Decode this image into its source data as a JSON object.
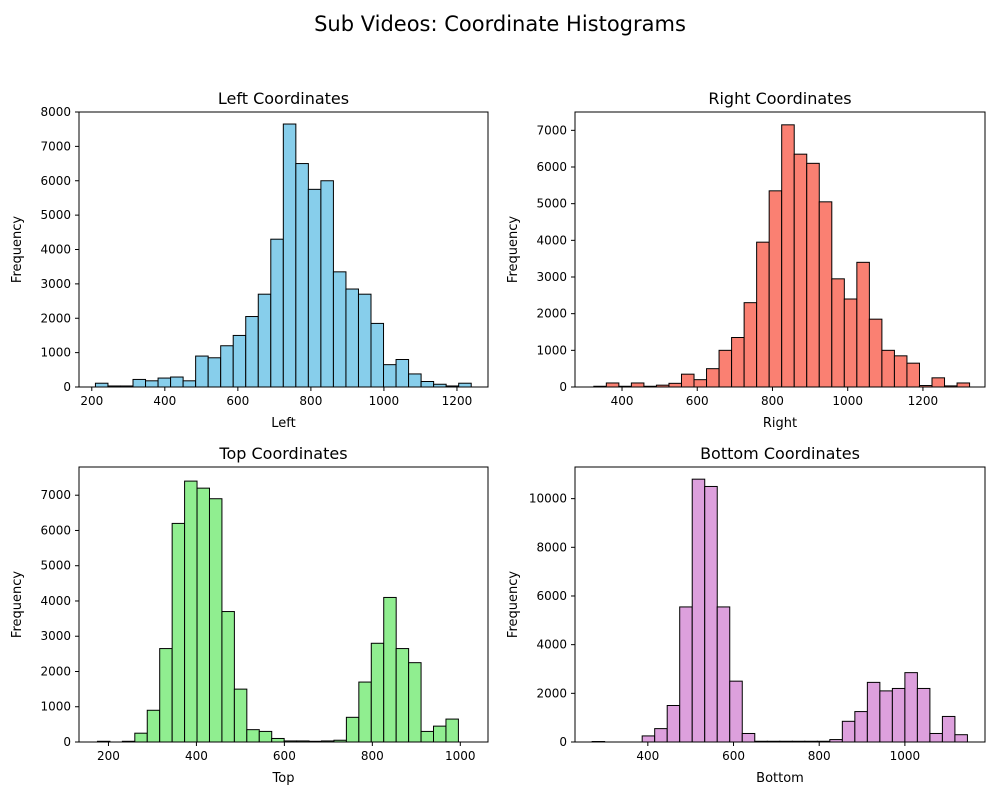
{
  "suptitle": "Sub Videos: Coordinate Histograms",
  "chart_data": [
    {
      "type": "bar",
      "title": "Left Coordinates",
      "xlabel": "Left",
      "ylabel": "Frequency",
      "color": "#87ceeb",
      "edgecolor": "#000000",
      "bin_start": 210,
      "bin_width": 34.3,
      "values": [
        110,
        30,
        30,
        220,
        180,
        260,
        290,
        180,
        900,
        850,
        1200,
        1500,
        2050,
        2700,
        4300,
        7650,
        6500,
        5750,
        6000,
        3350,
        2850,
        2700,
        1850,
        650,
        800,
        380,
        160,
        80,
        30,
        110
      ],
      "xlim": [
        165,
        1285
      ],
      "ylim": [
        0,
        8000
      ],
      "xticks": [
        200,
        400,
        600,
        800,
        1000,
        1200
      ],
      "yticks": [
        0,
        1000,
        2000,
        3000,
        4000,
        5000,
        6000,
        7000,
        8000
      ]
    },
    {
      "type": "bar",
      "title": "Right Coordinates",
      "xlabel": "Right",
      "ylabel": "Frequency",
      "color": "#fa8072",
      "edgecolor": "#000000",
      "bin_start": 325,
      "bin_width": 33.3,
      "values": [
        20,
        110,
        20,
        110,
        20,
        50,
        100,
        350,
        200,
        500,
        1000,
        1350,
        2300,
        3950,
        5350,
        7150,
        6350,
        6100,
        5050,
        2950,
        2400,
        3400,
        1850,
        1000,
        850,
        650,
        40,
        250,
        30,
        110
      ],
      "xlim": [
        275,
        1365
      ],
      "ylim": [
        0,
        7500
      ],
      "xticks": [
        400,
        600,
        800,
        1000,
        1200
      ],
      "yticks": [
        0,
        1000,
        2000,
        3000,
        4000,
        5000,
        6000,
        7000
      ]
    },
    {
      "type": "bar",
      "title": "Top Coordinates",
      "xlabel": "Top",
      "ylabel": "Frequency",
      "color": "#90ee90",
      "edgecolor": "#000000",
      "bin_start": 175,
      "bin_width": 28.3,
      "values": [
        20,
        0,
        20,
        250,
        900,
        2650,
        6200,
        7400,
        7200,
        6900,
        3700,
        1500,
        350,
        300,
        100,
        30,
        30,
        20,
        30,
        50,
        700,
        1700,
        2800,
        4100,
        2650,
        2250,
        300,
        450,
        650,
        0
      ],
      "xlim": [
        133,
        1063
      ],
      "ylim": [
        0,
        7800
      ],
      "xticks": [
        200,
        400,
        600,
        800,
        1000
      ],
      "yticks": [
        0,
        1000,
        2000,
        3000,
        4000,
        5000,
        6000,
        7000
      ]
    },
    {
      "type": "bar",
      "title": "Bottom Coordinates",
      "xlabel": "Bottom",
      "ylabel": "Frequency",
      "color": "#dda0dd",
      "edgecolor": "#000000",
      "bin_start": 270,
      "bin_width": 29.2,
      "values": [
        20,
        0,
        0,
        0,
        250,
        550,
        1500,
        5550,
        10800,
        10500,
        5550,
        2500,
        350,
        30,
        30,
        30,
        30,
        30,
        30,
        100,
        850,
        1250,
        2450,
        2100,
        2200,
        2850,
        2200,
        350,
        1050,
        300
      ],
      "xlim": [
        230,
        1187
      ],
      "ylim": [
        0,
        11300
      ],
      "xticks": [
        400,
        600,
        800,
        1000
      ],
      "yticks": [
        0,
        2000,
        4000,
        6000,
        8000,
        10000
      ]
    }
  ]
}
